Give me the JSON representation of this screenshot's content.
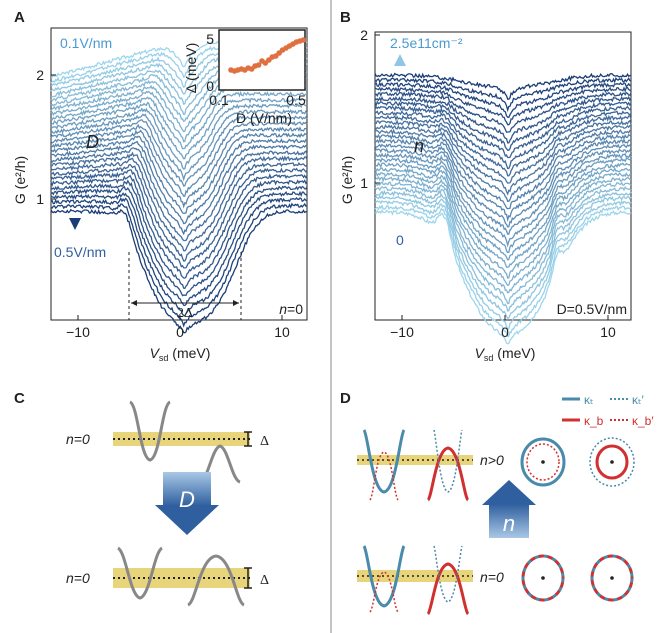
{
  "panels": {
    "A": {
      "label": "A",
      "y_ticks": [
        "2",
        "1"
      ],
      "x_ticks": [
        "−10",
        "0",
        "10"
      ],
      "ylabel": "G (e²/h)",
      "xlabel_main": "V",
      "xlabel_sub": "sd",
      "xlabel_unit": " (meV)",
      "top_label": "0.1V/nm",
      "bottom_label": "0.5V/nm",
      "arrow_label": "D",
      "gap_label": "2Δ",
      "corner_label": "n=0",
      "inset": {
        "ylabel": "Δ (meV)",
        "xlabel": "D (V/nm)",
        "y_ticks": [
          "5",
          "0"
        ],
        "x_ticks": [
          "0.1",
          "0.5"
        ]
      }
    },
    "B": {
      "label": "B",
      "y_ticks": [
        "2",
        "1"
      ],
      "x_ticks": [
        "−10",
        "0",
        "10"
      ],
      "ylabel": "G (e²/h)",
      "xlabel_main": "V",
      "xlabel_sub": "sd",
      "xlabel_unit": " (meV)",
      "top_label": "2.5e11cm⁻²",
      "bottom_label": "0",
      "arrow_label": "n",
      "corner_label": "D=0.5V/nm"
    },
    "C": {
      "label": "C",
      "top_row_label": "n=0",
      "bottom_row_label": "n=0",
      "gap_symbol": "Δ",
      "arrow_label": "D"
    },
    "D": {
      "label": "D",
      "legend": {
        "kt": "κₜ",
        "kb": "κ_b",
        "kt_prime": "κₜ′",
        "kb_prime": "κ_b′"
      },
      "top_row_label": "n>0",
      "bottom_row_label": "n=0",
      "arrow_label": "n"
    }
  },
  "colors": {
    "curve_light": "#9ed6ec",
    "curve_dark": "#1a3d78",
    "arrow_blue": "#2f5f9e",
    "label_blue": "#3a7bbf",
    "orange": "#e07040",
    "band_gold": "#e8d47a",
    "gray_band": "#8a8a8a",
    "red": "#d03030",
    "teal": "#4a8aab"
  },
  "chart_data": [
    {
      "type": "line",
      "panel": "A",
      "xlabel": "Vsd (meV)",
      "ylabel": "G (e²/h)",
      "xlim": [
        -13,
        12
      ],
      "ylim": [
        0.1,
        2.25
      ],
      "series_count": 30,
      "series_range": [
        "0.1V/nm",
        "0.5V/nm"
      ],
      "gap_edges_meV": [
        -5,
        6
      ]
    },
    {
      "type": "line",
      "panel": "B",
      "xlabel": "Vsd (meV)",
      "ylabel": "G (e²/h)",
      "xlim": [
        -13,
        12
      ],
      "ylim": [
        0.05,
        2.05
      ],
      "series_count": 30,
      "series_range": [
        "0",
        "2.5e11cm⁻²"
      ]
    },
    {
      "type": "scatter",
      "panel": "A-inset",
      "xlabel": "D (V/nm)",
      "ylabel": "Δ (meV)",
      "xlim": [
        0.05,
        0.55
      ],
      "ylim": [
        0,
        6
      ],
      "x": [
        0.12,
        0.14,
        0.16,
        0.18,
        0.2,
        0.22,
        0.24,
        0.26,
        0.28,
        0.3,
        0.32,
        0.34,
        0.36,
        0.38,
        0.4,
        0.42,
        0.44,
        0.46,
        0.48,
        0.5,
        0.52,
        0.54
      ],
      "y": [
        2.0,
        1.9,
        2.0,
        2.1,
        2.0,
        2.2,
        2.1,
        2.4,
        2.5,
        2.9,
        2.7,
        3.0,
        3.3,
        3.4,
        3.7,
        4.0,
        4.2,
        4.4,
        4.6,
        4.8,
        4.9,
        5.0
      ]
    }
  ]
}
